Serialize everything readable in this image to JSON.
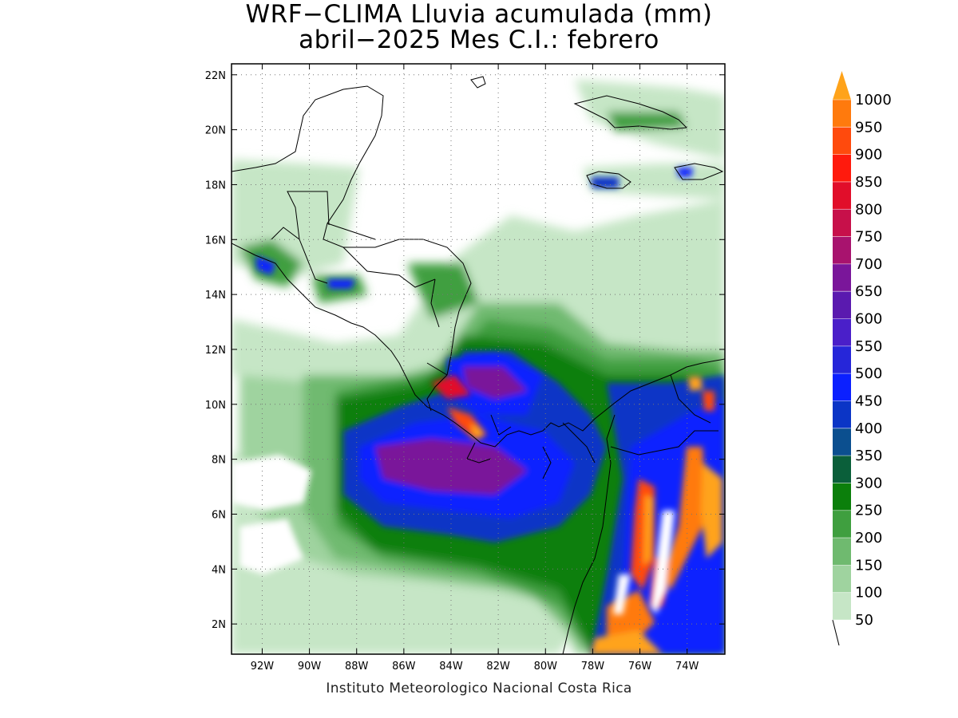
{
  "title": {
    "line1": "WRF−CLIMA Lluvia acumulada (mm)",
    "line2": "abril−2025 Mes C.I.: febrero"
  },
  "footer": "Instituto Meteorologico Nacional Costa Rica",
  "map": {
    "lon_range": [
      -93.3,
      -72.4
    ],
    "lat_range": [
      0.9,
      22.4
    ],
    "lon_ticks": [
      {
        "value": -92,
        "label": "92W"
      },
      {
        "value": -90,
        "label": "90W"
      },
      {
        "value": -88,
        "label": "88W"
      },
      {
        "value": -86,
        "label": "86W"
      },
      {
        "value": -84,
        "label": "84W"
      },
      {
        "value": -82,
        "label": "82W"
      },
      {
        "value": -80,
        "label": "80W"
      },
      {
        "value": -78,
        "label": "78W"
      },
      {
        "value": -76,
        "label": "76W"
      },
      {
        "value": -74,
        "label": "74W"
      }
    ],
    "lat_ticks": [
      {
        "value": 2,
        "label": "2N"
      },
      {
        "value": 4,
        "label": "4N"
      },
      {
        "value": 6,
        "label": "6N"
      },
      {
        "value": 8,
        "label": "8N"
      },
      {
        "value": 10,
        "label": "10N"
      },
      {
        "value": 12,
        "label": "12N"
      },
      {
        "value": 14,
        "label": "14N"
      },
      {
        "value": 16,
        "label": "16N"
      },
      {
        "value": 18,
        "label": "18N"
      },
      {
        "value": 20,
        "label": "20N"
      },
      {
        "value": 22,
        "label": "22N"
      }
    ],
    "grid": true
  },
  "colorbar": {
    "levels": [
      "50",
      "100",
      "150",
      "200",
      "250",
      "300",
      "350",
      "400",
      "450",
      "500",
      "550",
      "600",
      "650",
      "700",
      "750",
      "800",
      "850",
      "900",
      "950",
      "1000"
    ],
    "colors": [
      "#c6e6c6",
      "#9fd39f",
      "#6fba6f",
      "#3f9f3f",
      "#0b7f0b",
      "#0a5f3a",
      "#0b4f8f",
      "#0b35c6",
      "#0b20ff",
      "#2626d9",
      "#4a1fc9",
      "#5a1aaf",
      "#7a169a",
      "#a8136e",
      "#c7104a",
      "#e10e2a",
      "#ff1a0d",
      "#ff4a0d",
      "#ff7a0d",
      "#ffa31a"
    ],
    "over_color": "#ffa31a"
  }
}
